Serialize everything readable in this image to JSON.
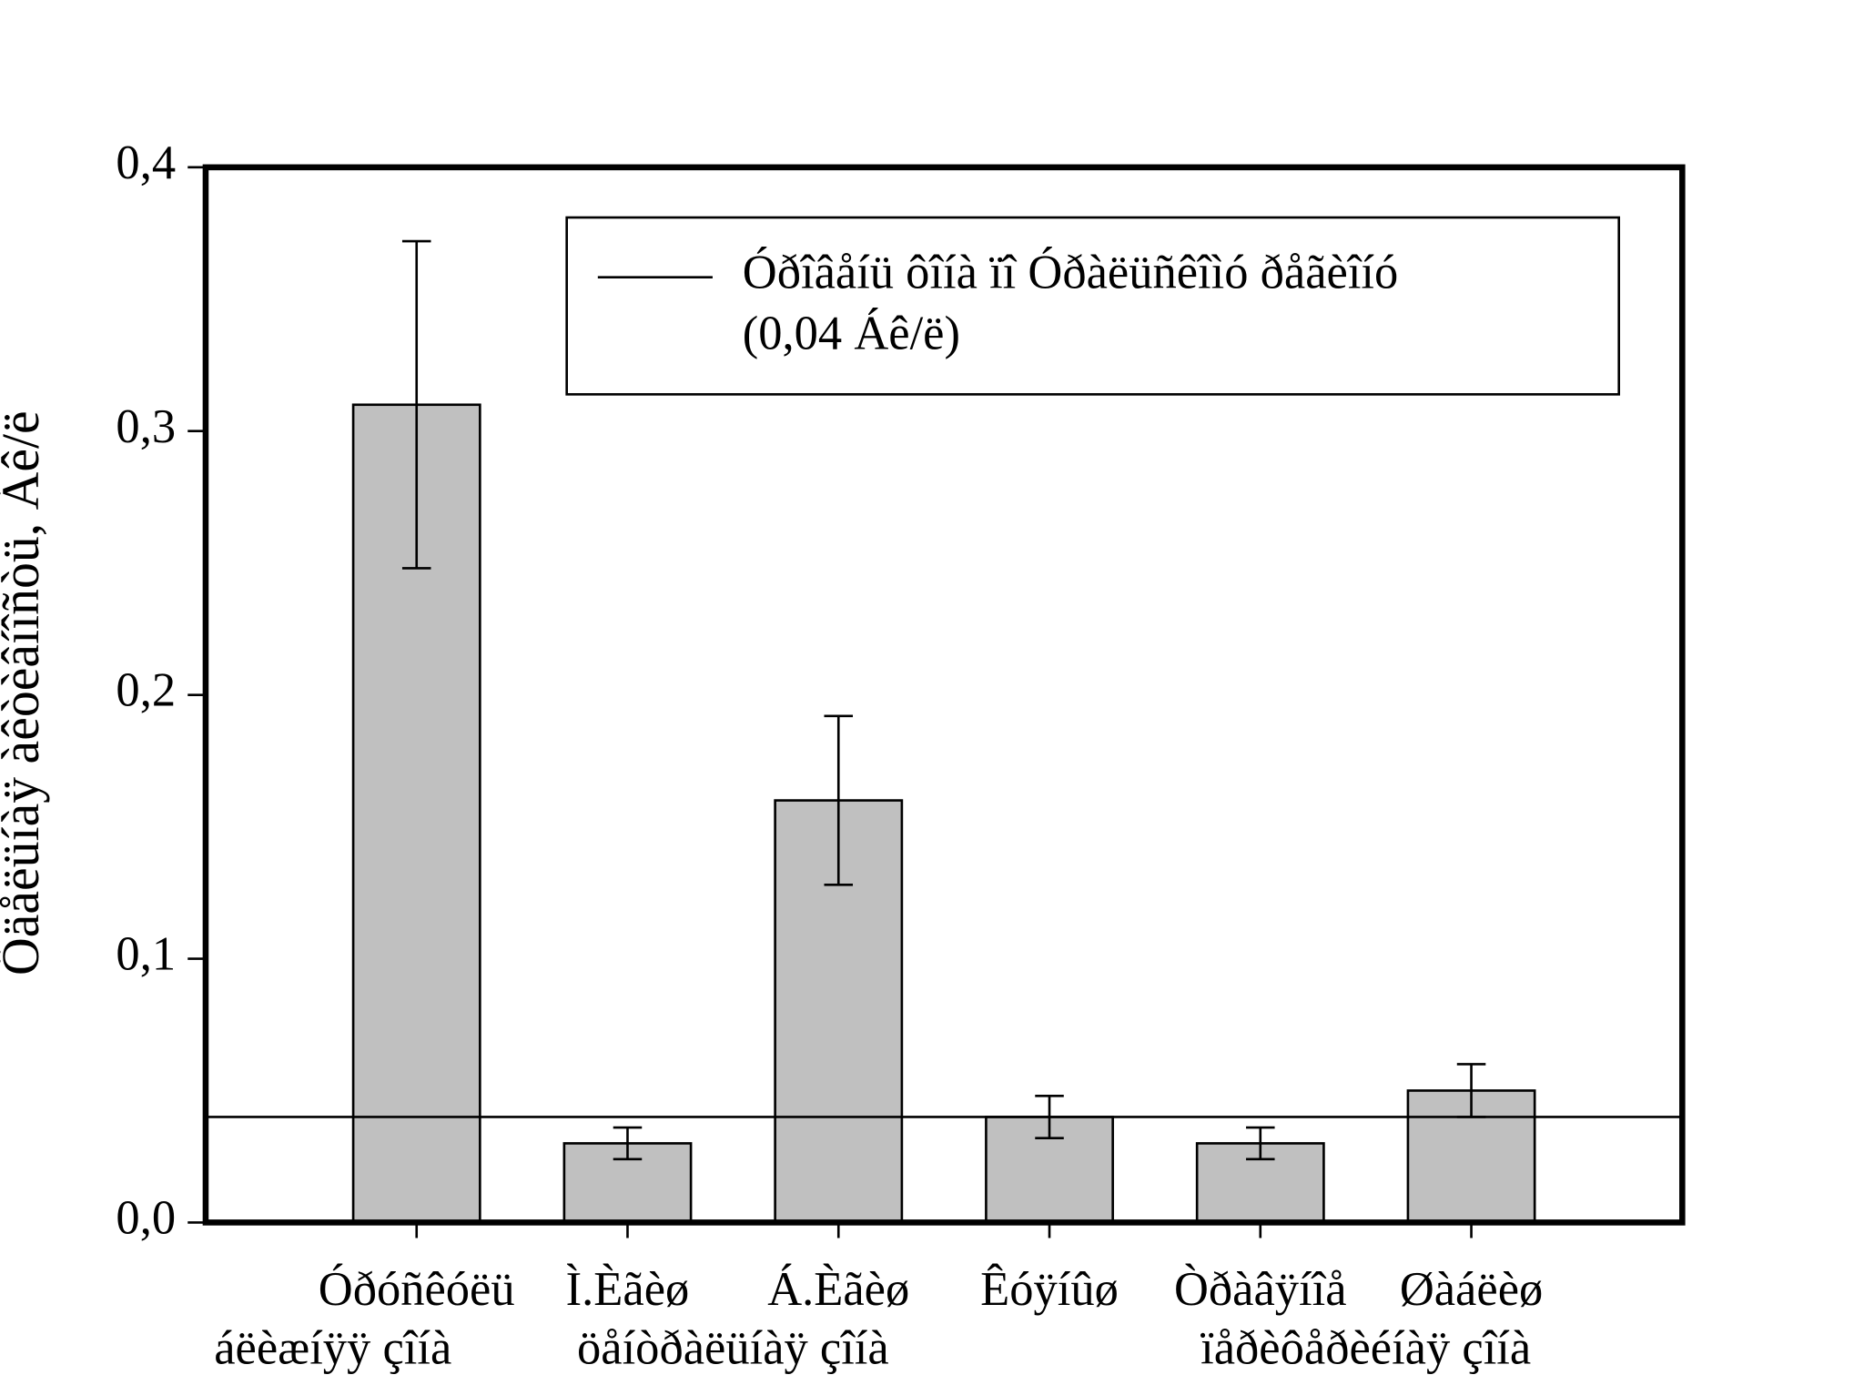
{
  "chart_data": {
    "type": "bar",
    "y_label": "Öäåëüíàÿ àêòèâíîñòü, Áê/ë",
    "categories": [
      "Óðóñêóëü",
      "Ì.Èãèø",
      "Á.Èãèø",
      "Êóÿíûø",
      "Òðàâÿíîå",
      "Øàáëèø"
    ],
    "zones": [
      "áëèæíÿÿ çîíà",
      "öåíòðàëüíàÿ çîíà",
      "ïåðèôåðèéíàÿ çîíà"
    ],
    "values": [
      0.31,
      0.03,
      0.16,
      0.04,
      0.03,
      0.05
    ],
    "errors": [
      0.062,
      0.006,
      0.032,
      0.008,
      0.006,
      0.01
    ],
    "color": "#c0c0c0",
    "reference_line": {
      "value": 0.04,
      "label_lines": [
        "Óðîâåíü ôîíà ïî Óðàëüñêîìó ðåãèîíó",
        "(0,04 Áê/ë)"
      ]
    },
    "ylim": [
      0,
      0.4
    ],
    "yticks": [
      {
        "value": 0,
        "label": "0,0"
      },
      {
        "value": 0.1,
        "label": "0,1"
      },
      {
        "value": 0.2,
        "label": "0,2"
      },
      {
        "value": 0.3,
        "label": "0,3"
      },
      {
        "value": 0.4,
        "label": "0,4"
      }
    ]
  }
}
